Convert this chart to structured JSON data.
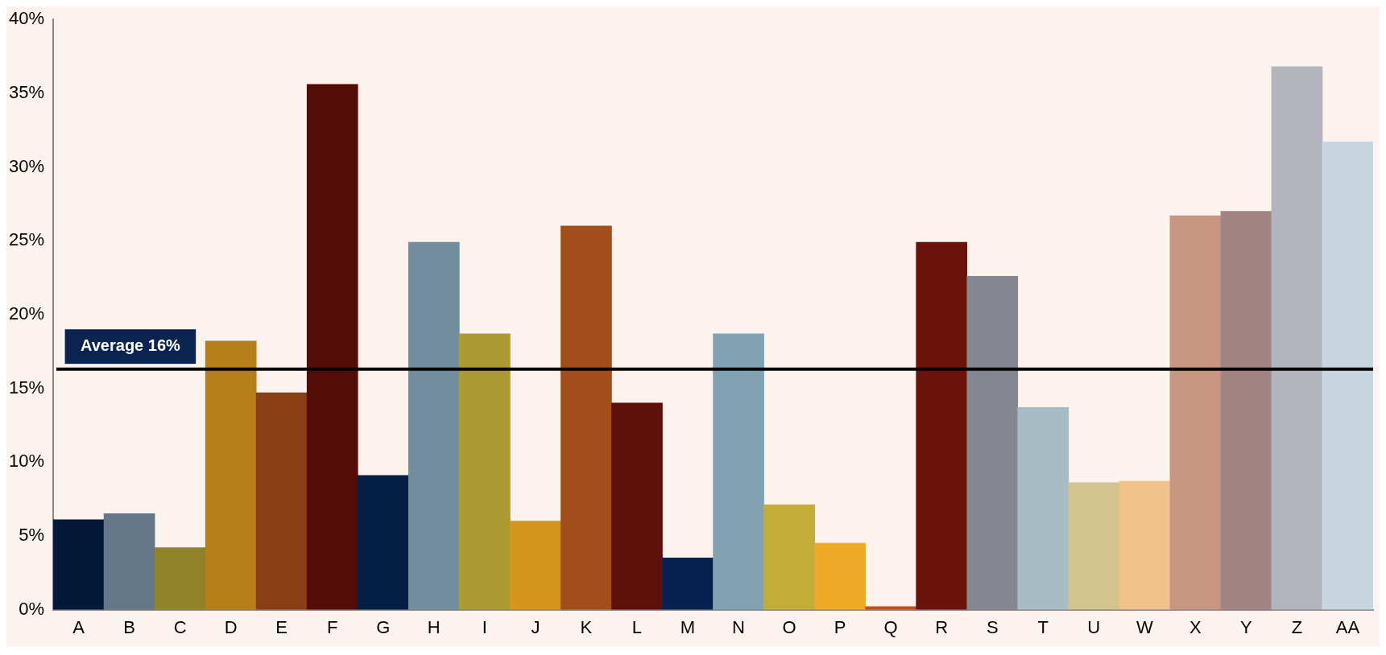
{
  "chart_data": {
    "type": "bar",
    "categories": [
      "A",
      "B",
      "C",
      "D",
      "E",
      "F",
      "G",
      "H",
      "I",
      "J",
      "K",
      "L",
      "M",
      "N",
      "O",
      "P",
      "Q",
      "R",
      "S",
      "T",
      "U",
      "W",
      "X",
      "Y",
      "Z",
      "AA"
    ],
    "values": [
      6.1,
      6.5,
      4.2,
      18.2,
      14.7,
      35.6,
      9.1,
      24.9,
      18.7,
      6.0,
      26.0,
      14.0,
      3.5,
      18.7,
      7.1,
      4.5,
      0.2,
      24.9,
      22.6,
      13.7,
      8.6,
      8.7,
      26.7,
      27.0,
      36.8,
      31.7
    ],
    "colors": [
      "#041838",
      "#627888",
      "#8f8228",
      "#b57e18",
      "#8a3e14",
      "#540c06",
      "#041e44",
      "#728e9e",
      "#ab9b32",
      "#d6961e",
      "#a24e1a",
      "#5e100a",
      "#082050",
      "#82a2b4",
      "#c2ac3a",
      "#eeaa26",
      "#c0501a",
      "#6c120c",
      "#848690",
      "#a8bcc6",
      "#d2c48c",
      "#f2c28a",
      "#ca9684",
      "#a28484",
      "#b4b4bc",
      "#c8d6e0"
    ],
    "ylim": [
      0,
      40
    ],
    "yticks": [
      {
        "value": 0,
        "label": "0%"
      },
      {
        "value": 5,
        "label": "5%"
      },
      {
        "value": 10,
        "label": "10%"
      },
      {
        "value": 15,
        "label": "15%"
      },
      {
        "value": 20,
        "label": "20%"
      },
      {
        "value": 25,
        "label": "25%"
      },
      {
        "value": 30,
        "label": "30%"
      },
      {
        "value": 35,
        "label": "35%"
      },
      {
        "value": 40,
        "label": "40%"
      }
    ],
    "ref_lines": [
      {
        "axis": "y",
        "value": 16.3,
        "label": "Average 16%",
        "color": "#000000"
      }
    ],
    "grid": false,
    "legend": false
  }
}
